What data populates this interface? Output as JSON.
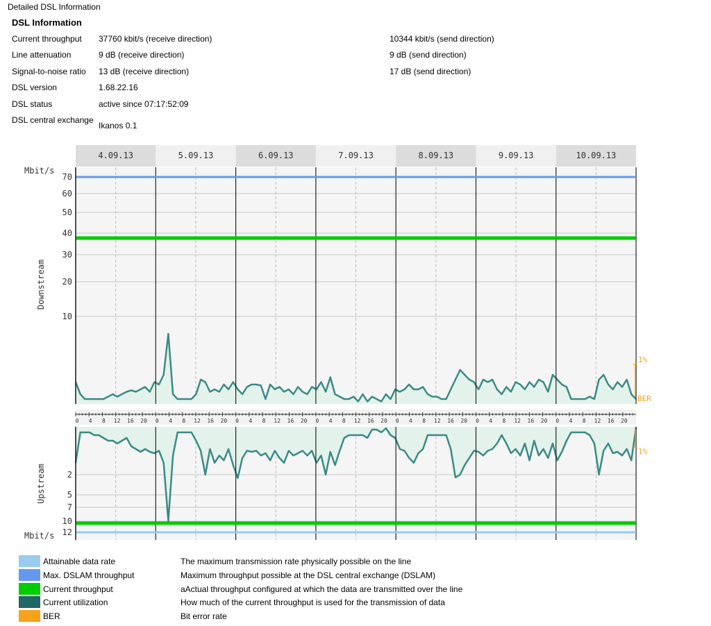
{
  "page": {
    "title": "Detailed DSL Information"
  },
  "info": {
    "section_title": "DSL Information",
    "rows": [
      {
        "label": "Current throughput",
        "receive": "37760 kbit/s (receive direction)",
        "send": "10344 kbit/s (send direction)"
      },
      {
        "label": "Line attenuation",
        "receive": "9 dB (receive direction)",
        "send": "9 dB (send direction)"
      },
      {
        "label": "Signal-to-noise ratio",
        "receive": "13 dB (receive direction)",
        "send": "17 dB (send direction)"
      },
      {
        "label": "DSL version",
        "receive": "1.68.22.16",
        "send": ""
      },
      {
        "label": "DSL status",
        "receive": "active since 07:17:52:09",
        "send": ""
      },
      {
        "label": "DSL central exchange",
        "receive": "Ikanos 0.1",
        "send": ""
      }
    ]
  },
  "chart_data": {
    "type": "line",
    "dates": [
      "4.09.13",
      "5.09.13",
      "6.09.13",
      "7.09.13",
      "8.09.13",
      "9.09.13",
      "10.09.13"
    ],
    "hour_ticks": [
      "0",
      "4",
      "8",
      "12",
      "16",
      "20"
    ],
    "downstream": {
      "axis_label": "Downstream",
      "unit": "Mbit/s",
      "yticks": [
        "70",
        "60",
        "50",
        "40",
        "30",
        "20",
        "10"
      ],
      "max_dslam_mbits": 70,
      "current_throughput_mbits": 37.76,
      "ber_label": "BER",
      "ber_pct_label": "1%",
      "utilization": [
        0.45,
        0.2,
        0.1,
        0.1,
        0.1,
        0.1,
        0.1,
        0.15,
        0.2,
        0.15,
        0.2,
        0.25,
        0.28,
        0.25,
        0.3,
        0.35,
        0.25,
        0.45,
        0.4,
        0.6,
        6.0,
        0.2,
        0.1,
        0.1,
        0.1,
        0.1,
        0.2,
        0.5,
        0.45,
        0.25,
        0.3,
        0.25,
        0.4,
        0.3,
        0.45,
        0.3,
        0.2,
        0.35,
        0.4,
        0.4,
        0.38,
        0.1,
        0.4,
        0.3,
        0.35,
        0.25,
        0.3,
        0.2,
        0.35,
        0.25,
        0.2,
        0.35,
        0.3,
        0.45,
        0.25,
        0.55,
        0.2,
        0.15,
        0.1,
        0.1,
        0.15,
        0.05,
        0.2,
        0.05,
        0.15,
        0.1,
        0.05,
        0.2,
        0.1,
        0.3,
        0.25,
        0.3,
        0.4,
        0.3,
        0.3,
        0.35,
        0.2,
        0.15,
        0.15,
        0.1,
        0.1,
        0.3,
        0.5,
        0.7,
        0.6,
        0.5,
        0.45,
        0.3,
        0.5,
        0.45,
        0.5,
        0.3,
        0.2,
        0.35,
        0.25,
        0.45,
        0.4,
        0.3,
        0.45,
        0.35,
        0.5,
        0.45,
        0.25,
        0.6,
        0.5,
        0.4,
        0.35,
        0.1,
        0.1,
        0.1,
        0.1,
        0.15,
        0.1,
        0.5,
        0.6,
        0.4,
        0.3,
        0.45,
        0.35,
        0.5,
        0.2,
        0.1
      ],
      "attainable_mbits": 72
    },
    "upstream": {
      "axis_label": "Upstream",
      "unit": "Mbit/s",
      "yticks": [
        "2",
        "5",
        "7",
        "10",
        "12"
      ],
      "current_throughput_mbits": 10.344,
      "ber_pct_label": "1%",
      "utilization": [
        1.5,
        0.2,
        0.2,
        0.2,
        0.3,
        0.3,
        0.4,
        0.5,
        0.5,
        0.6,
        0.5,
        0.4,
        0.7,
        0.8,
        0.9,
        0.8,
        0.9,
        1.1,
        1.0,
        1.5,
        10.0,
        1.2,
        0.2,
        0.2,
        0.2,
        0.2,
        0.5,
        1.0,
        2.0,
        0.8,
        1.5,
        1.2,
        1.4,
        0.8,
        1.6,
        2.5,
        1.3,
        1.0,
        0.9,
        1.0,
        1.2,
        1.1,
        1.4,
        1.0,
        1.3,
        1.5,
        1.0,
        1.2,
        1.1,
        1.0,
        1.2,
        1.0,
        1.5,
        1.2,
        2.0,
        0.9,
        1.6,
        1.0,
        0.4,
        0.3,
        0.3,
        0.3,
        0.3,
        0.4,
        0.1,
        0.1,
        0.2,
        0.05,
        0.3,
        0.4,
        0.8,
        1.0,
        1.3,
        1.5,
        1.1,
        0.8,
        0.3,
        0.3,
        0.3,
        0.3,
        0.3,
        0.8,
        2.4,
        2.0,
        1.6,
        1.3,
        1.0,
        0.9,
        1.2,
        1.0,
        0.8,
        0.6,
        0.3,
        0.6,
        1.1,
        0.8,
        1.2,
        0.6,
        1.4,
        0.5,
        1.2,
        0.8,
        1.3,
        0.6,
        1.4,
        0.9,
        0.5,
        0.2,
        0.2,
        0.2,
        0.2,
        0.3,
        0.6,
        2.0,
        1.0,
        0.6,
        1.1,
        0.9,
        1.2,
        0.8,
        1.4,
        0.02
      ],
      "attainable_mbits": 12
    }
  },
  "legend": [
    {
      "name": "Attainable data rate",
      "desc": "The maximum transmission rate physically possible on the line",
      "color": "#99ccee"
    },
    {
      "name": "Max. DSLAM throughput",
      "desc": "Maximum throughput possible at the DSL central exchange (DSLAM)",
      "color": "#6699ee"
    },
    {
      "name": "Current throughput",
      "desc": "aActual throughput configured at which the data are transmitted over the line",
      "color": "#00cc00"
    },
    {
      "name": "Current utilization",
      "desc": "How much of the current throughput is used for the transmission of data",
      "color": "#226666"
    },
    {
      "name": "BER",
      "desc": "Bit error rate",
      "color": "#f7a21c"
    }
  ],
  "colors": {
    "attainable": "#99ccee",
    "max_dslam": "#6699ee",
    "current_throughput": "#00cc00",
    "utilization_line": "#3a8a86",
    "utilization_fill": "#e3f2ea",
    "ber": "#f7a21c"
  }
}
